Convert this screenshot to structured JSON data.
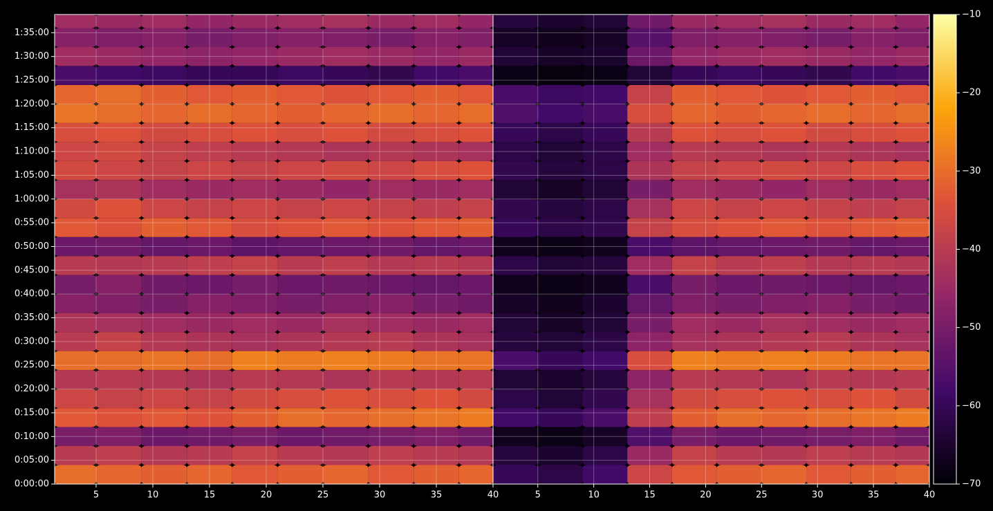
{
  "chart_data": [
    {
      "type": "heatmap",
      "grid": true,
      "xlim": [
        1.34,
        40
      ],
      "xticks": [
        5,
        10,
        15,
        20,
        25,
        30,
        35,
        40
      ],
      "ylim": [
        0,
        5930
      ],
      "yticks": [
        {
          "value": 0,
          "label": "0:00:00"
        },
        {
          "value": 300,
          "label": "0:05:00"
        },
        {
          "value": 600,
          "label": "0:10:00"
        },
        {
          "value": 900,
          "label": "0:15:00"
        },
        {
          "value": 1200,
          "label": "0:20:00"
        },
        {
          "value": 1500,
          "label": "0:25:00"
        },
        {
          "value": 1800,
          "label": "0:30:00"
        },
        {
          "value": 2100,
          "label": "0:35:00"
        },
        {
          "value": 2400,
          "label": "0:40:00"
        },
        {
          "value": 2700,
          "label": "0:45:00"
        },
        {
          "value": 3000,
          "label": "0:50:00"
        },
        {
          "value": 3300,
          "label": "0:55:00"
        },
        {
          "value": 3600,
          "label": "1:00:00"
        },
        {
          "value": 3900,
          "label": "1:05:00"
        },
        {
          "value": 4200,
          "label": "1:10:00"
        },
        {
          "value": 4500,
          "label": "1:15:00"
        },
        {
          "value": 4800,
          "label": "1:20:00"
        },
        {
          "value": 5100,
          "label": "1:25:00"
        },
        {
          "value": 5400,
          "label": "1:30:00"
        },
        {
          "value": 5700,
          "label": "1:35:00"
        }
      ],
      "xbins": [
        1.34,
        5,
        9,
        13,
        17,
        21,
        25,
        29,
        33,
        37,
        40
      ],
      "ybins": [
        0,
        240,
        480,
        720,
        960,
        1200,
        1440,
        1680,
        1920,
        2160,
        2400,
        2640,
        2880,
        3120,
        3360,
        3600,
        3840,
        4080,
        4320,
        4560,
        4800,
        5040,
        5280,
        5520,
        5760,
        5930
      ],
      "values": [
        [
          -30,
          -31,
          -32,
          -31,
          -33,
          -32,
          -31,
          -33,
          -32,
          -31
        ],
        [
          -40,
          -39,
          -41,
          -40,
          -38,
          -40,
          -41,
          -39,
          -40,
          -41
        ],
        [
          -50,
          -49,
          -52,
          -51,
          -50,
          -52,
          -51,
          -50,
          -49,
          -51
        ],
        [
          -33,
          -34,
          -33,
          -34,
          -32,
          -30,
          -31,
          -30,
          -29,
          -28
        ],
        [
          -37,
          -38,
          -37,
          -38,
          -36,
          -35,
          -34,
          -35,
          -34,
          -36
        ],
        [
          -41,
          -40,
          -41,
          -42,
          -40,
          -41,
          -42,
          -40,
          -41,
          -40
        ],
        [
          -30,
          -30,
          -29,
          -30,
          -27,
          -28,
          -27,
          -28,
          -29,
          -29
        ],
        [
          -40,
          -38,
          -41,
          -42,
          -43,
          -42,
          -41,
          -40,
          -42,
          -43
        ],
        [
          -42,
          -43,
          -44,
          -45,
          -44,
          -45,
          -43,
          -44,
          -45,
          -44
        ],
        [
          -48,
          -49,
          -50,
          -48,
          -49,
          -50,
          -49,
          -48,
          -50,
          -51
        ],
        [
          -50,
          -48,
          -51,
          -52,
          -50,
          -52,
          -51,
          -52,
          -53,
          -52
        ],
        [
          -40,
          -41,
          -40,
          -39,
          -38,
          -40,
          -39,
          -41,
          -40,
          -41
        ],
        [
          -52,
          -51,
          -53,
          -52,
          -54,
          -53,
          -52,
          -51,
          -53,
          -52
        ],
        [
          -33,
          -34,
          -32,
          -33,
          -35,
          -34,
          -33,
          -34,
          -33,
          -32
        ],
        [
          -36,
          -34,
          -37,
          -38,
          -37,
          -38,
          -37,
          -38,
          -39,
          -38
        ],
        [
          -43,
          -42,
          -44,
          -45,
          -44,
          -45,
          -46,
          -44,
          -45,
          -44
        ],
        [
          -36,
          -37,
          -38,
          -37,
          -38,
          -37,
          -36,
          -37,
          -35,
          -34
        ],
        [
          -37,
          -36,
          -38,
          -39,
          -40,
          -41,
          -42,
          -41,
          -42,
          -43
        ],
        [
          -35,
          -34,
          -36,
          -35,
          -34,
          -35,
          -34,
          -36,
          -35,
          -34
        ],
        [
          -29,
          -30,
          -31,
          -30,
          -31,
          -32,
          -31,
          -30,
          -31,
          -30
        ],
        [
          -31,
          -30,
          -32,
          -33,
          -32,
          -33,
          -34,
          -33,
          -32,
          -33
        ],
        [
          -57,
          -58,
          -59,
          -60,
          -60,
          -59,
          -60,
          -61,
          -58,
          -57
        ],
        [
          -44,
          -45,
          -46,
          -47,
          -46,
          -45,
          -44,
          -45,
          -46,
          -45
        ],
        [
          -48,
          -49,
          -48,
          -50,
          -49,
          -48,
          -49,
          -50,
          -48,
          -49
        ],
        [
          -44,
          -45,
          -44,
          -46,
          -45,
          -44,
          -43,
          -45,
          -44,
          -46
        ]
      ]
    },
    {
      "type": "heatmap",
      "grid": true,
      "xlim": [
        1,
        40
      ],
      "xticks": [
        5,
        10,
        15,
        20,
        25,
        30,
        35,
        40
      ],
      "ylim": [
        0,
        5930
      ],
      "xbins": [
        1,
        5,
        9,
        13,
        17,
        21,
        25,
        29,
        33,
        37,
        40
      ],
      "ybins": [
        0,
        240,
        480,
        720,
        960,
        1200,
        1440,
        1680,
        1920,
        2160,
        2400,
        2640,
        2880,
        3120,
        3360,
        3600,
        3840,
        4080,
        4320,
        4560,
        4800,
        5040,
        5280,
        5520,
        5760,
        5930
      ],
      "values": [
        [
          -60,
          -62,
          -58,
          -37,
          -33,
          -32,
          -31,
          -33,
          -32,
          -31
        ],
        [
          -63,
          -65,
          -62,
          -45,
          -38,
          -40,
          -41,
          -39,
          -40,
          -41
        ],
        [
          -67,
          -68,
          -66,
          -56,
          -50,
          -52,
          -51,
          -50,
          -49,
          -51
        ],
        [
          -58,
          -60,
          -57,
          -39,
          -32,
          -30,
          -31,
          -30,
          -29,
          -28
        ],
        [
          -62,
          -64,
          -61,
          -43,
          -36,
          -35,
          -34,
          -35,
          -34,
          -36
        ],
        [
          -64,
          -65,
          -63,
          -47,
          -40,
          -41,
          -42,
          -40,
          -41,
          -40
        ],
        [
          -57,
          -60,
          -58,
          -35,
          -27,
          -28,
          -27,
          -28,
          -29,
          -29
        ],
        [
          -63,
          -64,
          -62,
          -47,
          -43,
          -42,
          -41,
          -40,
          -42,
          -43
        ],
        [
          -64,
          -66,
          -64,
          -50,
          -44,
          -45,
          -43,
          -44,
          -45,
          -44
        ],
        [
          -66,
          -67,
          -65,
          -53,
          -49,
          -50,
          -49,
          -48,
          -50,
          -51
        ],
        [
          -67,
          -68,
          -67,
          -57,
          -50,
          -52,
          -51,
          -52,
          -53,
          -52
        ],
        [
          -62,
          -64,
          -63,
          -44,
          -38,
          -40,
          -39,
          -41,
          -40,
          -41
        ],
        [
          -67,
          -68,
          -67,
          -57,
          -54,
          -53,
          -52,
          -51,
          -53,
          -52
        ],
        [
          -60,
          -62,
          -61,
          -38,
          -35,
          -34,
          -33,
          -34,
          -33,
          -32
        ],
        [
          -61,
          -63,
          -62,
          -43,
          -37,
          -38,
          -37,
          -38,
          -39,
          -38
        ],
        [
          -64,
          -66,
          -64,
          -50,
          -44,
          -45,
          -46,
          -44,
          -45,
          -44
        ],
        [
          -61,
          -63,
          -62,
          -42,
          -38,
          -37,
          -36,
          -37,
          -35,
          -34
        ],
        [
          -62,
          -64,
          -62,
          -44,
          -40,
          -41,
          -42,
          -41,
          -42,
          -43
        ],
        [
          -60,
          -62,
          -60,
          -40,
          -34,
          -35,
          -34,
          -36,
          -35,
          -34
        ],
        [
          -56,
          -58,
          -57,
          -35,
          -31,
          -32,
          -31,
          -30,
          -31,
          -30
        ],
        [
          -57,
          -59,
          -58,
          -38,
          -32,
          -33,
          -34,
          -33,
          -32,
          -33
        ],
        [
          -68,
          -69,
          -68,
          -64,
          -60,
          -59,
          -60,
          -61,
          -58,
          -57
        ],
        [
          -64,
          -66,
          -65,
          -52,
          -46,
          -45,
          -44,
          -45,
          -46,
          -45
        ],
        [
          -66,
          -67,
          -66,
          -55,
          -49,
          -48,
          -49,
          -50,
          -48,
          -49
        ],
        [
          -63,
          -65,
          -64,
          -51,
          -45,
          -44,
          -43,
          -45,
          -44,
          -46
        ]
      ]
    }
  ],
  "colorbar": {
    "lim": [
      -70,
      -10
    ],
    "ticks": [
      {
        "value": -10,
        "label": "−10"
      },
      {
        "value": -20,
        "label": "−20"
      },
      {
        "value": -30,
        "label": "−30"
      },
      {
        "value": -40,
        "label": "−40"
      },
      {
        "value": -50,
        "label": "−50"
      },
      {
        "value": -60,
        "label": "−60"
      },
      {
        "value": -70,
        "label": "−70"
      }
    ],
    "colors": [
      "#000004",
      "#420a68",
      "#932667",
      "#dd513a",
      "#fca50a",
      "#fcffa4"
    ]
  }
}
